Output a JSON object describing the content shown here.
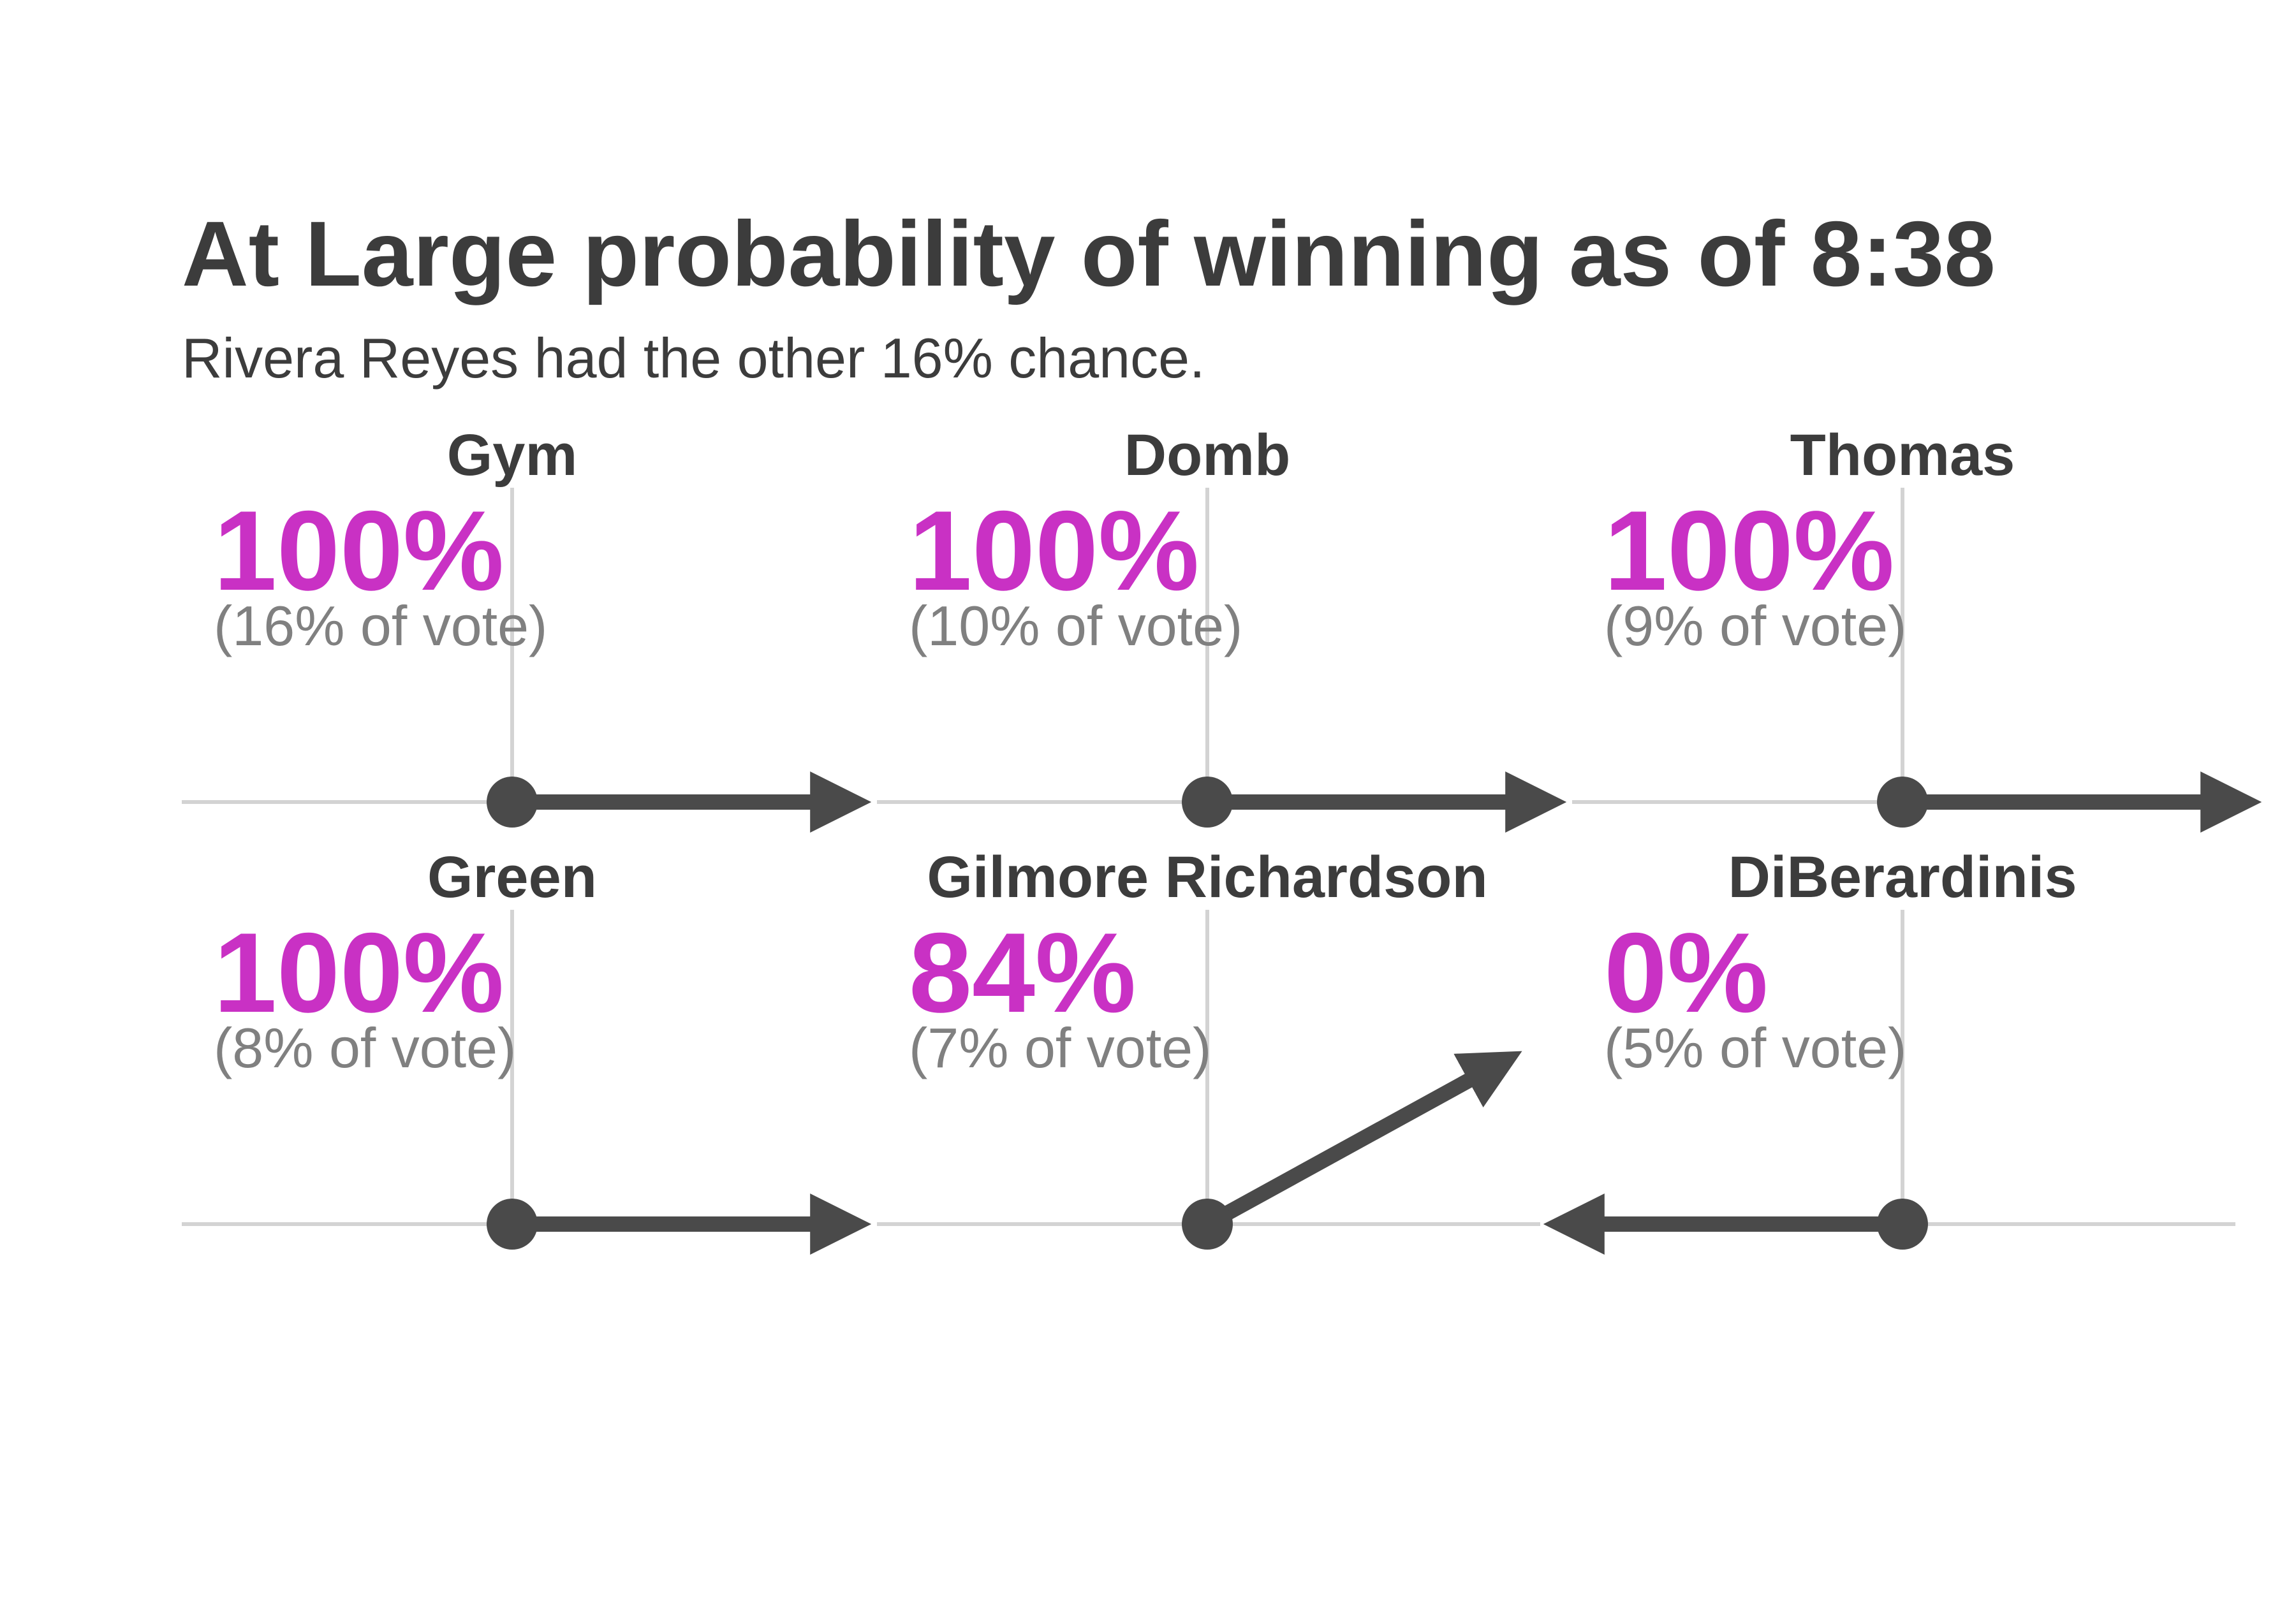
{
  "chart_data": {
    "type": "small-multiples-arrow",
    "title": "At Large probability of winning as of 8:38",
    "subtitle": "Rivera Reyes had the other 16% chance.",
    "colors": {
      "text": "#3c3c3c",
      "probability": "#c931c4",
      "vote_share": "#808080",
      "arrow": "#4a4a4a",
      "axis": "#d3d3d3"
    },
    "panels": [
      {
        "name": "Gym",
        "probability": 1.0,
        "probability_label": "100%",
        "vote_label": "(16% of vote)"
      },
      {
        "name": "Domb",
        "probability": 1.0,
        "probability_label": "100%",
        "vote_label": "(10% of vote)"
      },
      {
        "name": "Thomas",
        "probability": 1.0,
        "probability_label": "100%",
        "vote_label": "(9% of vote)"
      },
      {
        "name": "Green",
        "probability": 1.0,
        "probability_label": "100%",
        "vote_label": "(8% of vote)"
      },
      {
        "name": "Gilmore Richardson",
        "probability": 0.84,
        "probability_label": "84%",
        "vote_label": "(7% of vote)"
      },
      {
        "name": "DiBerardinis",
        "probability": 0.0,
        "probability_label": "0%",
        "vote_label": "(5% of vote)"
      }
    ]
  }
}
